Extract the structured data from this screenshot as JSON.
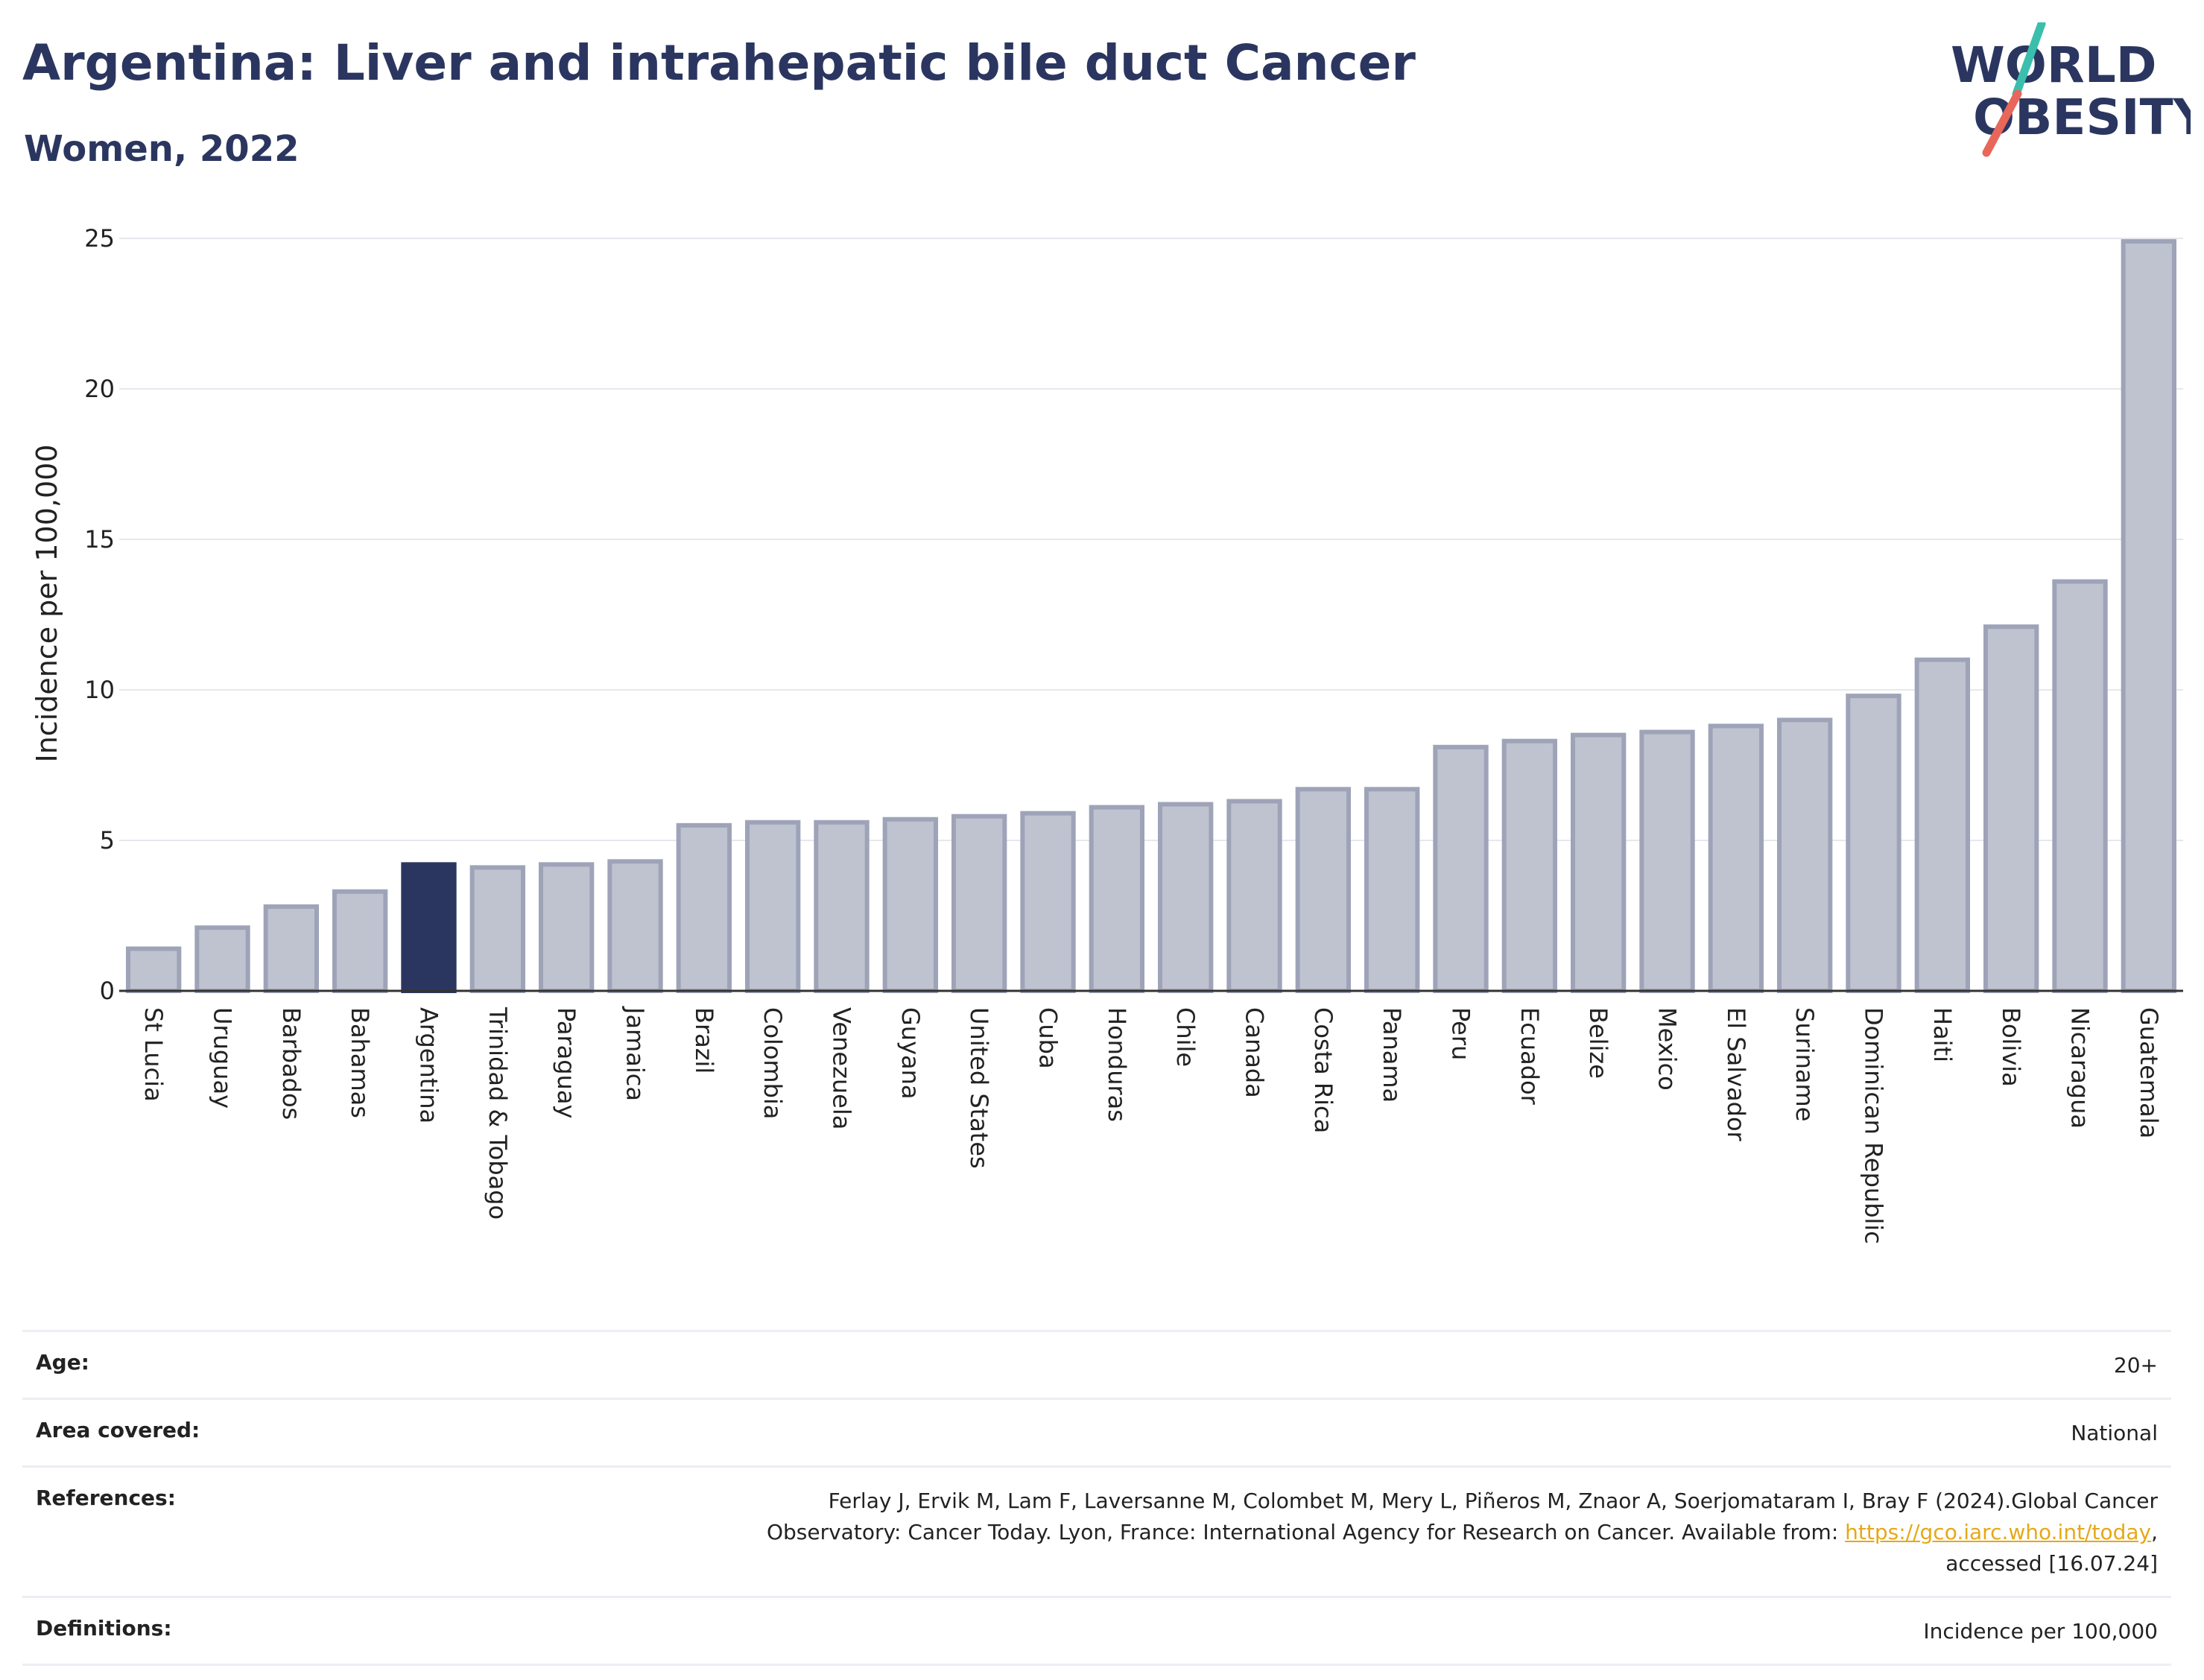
{
  "header": {
    "title": "Argentina: Liver and intrahepatic bile duct Cancer",
    "subtitle": "Women, 2022"
  },
  "logo": {
    "line1": "WORLD",
    "line2": "OBESITY",
    "colors": {
      "text": "#2b3660",
      "slash_teal": "#3bbfad",
      "slash_red": "#e8675a"
    }
  },
  "colors": {
    "highlight_bar": "#2b3660",
    "other_bar_fill": "#bfc3d0",
    "other_bar_stroke": "#9ea3b8",
    "gridline": "#e6e8ee",
    "axis": "#333333"
  },
  "chart_data": {
    "type": "bar",
    "ylabel": "Incidence per 100,000",
    "xlabel": "",
    "ylim": [
      0,
      25
    ],
    "yticks": [
      0,
      5,
      10,
      15,
      20,
      25
    ],
    "grid": true,
    "highlight": "Argentina",
    "categories": [
      "St Lucia",
      "Uruguay",
      "Barbados",
      "Bahamas",
      "Argentina",
      "Trinidad & Tobago",
      "Paraguay",
      "Jamaica",
      "Brazil",
      "Colombia",
      "Venezuela",
      "Guyana",
      "United States",
      "Cuba",
      "Honduras",
      "Chile",
      "Canada",
      "Costa Rica",
      "Panama",
      "Peru",
      "Ecuador",
      "Belize",
      "Mexico",
      "El Salvador",
      "Suriname",
      "Dominican Republic",
      "Haiti",
      "Bolivia",
      "Nicaragua",
      "Guatemala"
    ],
    "values": [
      1.4,
      2.1,
      2.8,
      3.3,
      4.2,
      4.1,
      4.2,
      4.3,
      5.5,
      5.6,
      5.6,
      5.7,
      5.8,
      5.9,
      6.1,
      6.2,
      6.3,
      6.7,
      6.7,
      8.1,
      8.3,
      8.5,
      8.6,
      8.8,
      9.0,
      9.8,
      11.0,
      12.1,
      13.6,
      24.9
    ]
  },
  "meta": {
    "age": {
      "label": "Age:",
      "value": "20+"
    },
    "area": {
      "label": "Area covered:",
      "value": "National"
    },
    "references": {
      "label": "References:",
      "text_line1": "Ferlay J, Ervik M, Lam F, Laversanne M, Colombet M, Mery L, Piñeros M, Znaor A, Soerjomataram I, Bray F (2024).Global Cancer",
      "text_line2_before": "Observatory: Cancer Today. Lyon, France: International Agency for Research on Cancer. Available from: ",
      "link": "https://gco.iarc.who.int/today",
      "text_line2_after": ",",
      "text_line3": "accessed [16.07.24]"
    },
    "definitions": {
      "label": "Definitions:",
      "value": "Incidence per 100,000"
    }
  }
}
